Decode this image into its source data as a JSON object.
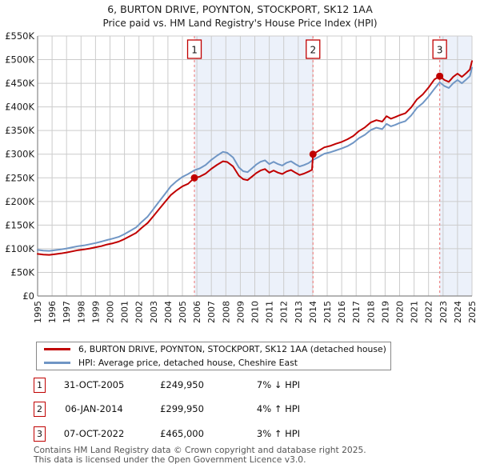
{
  "title": {
    "line1": "6, BURTON DRIVE, POYNTON, STOCKPORT, SK12 1AA",
    "line2": "Price paid vs. HM Land Registry's House Price Index (HPI)"
  },
  "chart_data": {
    "type": "line",
    "title": "Price paid vs. HM Land Registry's House Price Index (HPI)",
    "xlim": [
      1995,
      2025
    ],
    "ylim": [
      0,
      550
    ],
    "grid": true,
    "legend_position": "bottom",
    "x_ticks": [
      "1995",
      "1996",
      "1997",
      "1998",
      "1999",
      "2000",
      "2001",
      "2002",
      "2003",
      "2004",
      "2005",
      "2006",
      "2007",
      "2008",
      "2009",
      "2010",
      "2011",
      "2012",
      "2013",
      "2014",
      "2015",
      "2016",
      "2017",
      "2018",
      "2019",
      "2020",
      "2021",
      "2022",
      "2023",
      "2024",
      "2025"
    ],
    "y_ticks": [
      {
        "value": 0,
        "label": "£0"
      },
      {
        "value": 50,
        "label": "£50K"
      },
      {
        "value": 100,
        "label": "£100K"
      },
      {
        "value": 150,
        "label": "£150K"
      },
      {
        "value": 200,
        "label": "£200K"
      },
      {
        "value": 250,
        "label": "£250K"
      },
      {
        "value": 300,
        "label": "£300K"
      },
      {
        "value": 350,
        "label": "£350K"
      },
      {
        "value": 400,
        "label": "£400K"
      },
      {
        "value": 450,
        "label": "£450K"
      },
      {
        "value": 500,
        "label": "£500K"
      },
      {
        "value": 550,
        "label": "£550K"
      }
    ],
    "y_unit": "GBP thousands",
    "colors": {
      "property_line": "#c00000",
      "hpi_line": "#7096c5",
      "sale_dashed_line": "#ee8888",
      "shaded_region": "#ecf1fa",
      "gridline": "#cccccc",
      "axis": "#888888",
      "marker_box_border": "#c00000"
    },
    "shaded_regions": [
      [
        2005.83,
        2014.02
      ],
      [
        2022.77,
        2025
      ]
    ],
    "series": [
      {
        "name": "6, BURTON DRIVE, POYNTON, STOCKPORT, SK12 1AA (detached house)",
        "color": "#c00000",
        "points": [
          [
            1995.0,
            89
          ],
          [
            1995.4,
            87.5
          ],
          [
            1995.8,
            87
          ],
          [
            1996.2,
            88.5
          ],
          [
            1996.6,
            90
          ],
          [
            1997.0,
            92
          ],
          [
            1997.4,
            94.5
          ],
          [
            1997.8,
            97
          ],
          [
            1998.2,
            98.5
          ],
          [
            1998.6,
            100.5
          ],
          [
            1999.0,
            103
          ],
          [
            1999.4,
            105.5
          ],
          [
            1999.8,
            109
          ],
          [
            2000.2,
            111.5
          ],
          [
            2000.6,
            115
          ],
          [
            2001.0,
            120.5
          ],
          [
            2001.4,
            127
          ],
          [
            2001.8,
            133.5
          ],
          [
            2002.2,
            144.5
          ],
          [
            2002.6,
            154.5
          ],
          [
            2003.0,
            169
          ],
          [
            2003.4,
            184
          ],
          [
            2003.8,
            199
          ],
          [
            2004.2,
            213.5
          ],
          [
            2004.6,
            223.5
          ],
          [
            2005.0,
            232
          ],
          [
            2005.4,
            237.5
          ],
          [
            2005.83,
            249.95
          ],
          [
            2006.2,
            252.5
          ],
          [
            2006.6,
            259
          ],
          [
            2007.0,
            269
          ],
          [
            2007.4,
            277.5
          ],
          [
            2007.8,
            285
          ],
          [
            2008.1,
            283.5
          ],
          [
            2008.5,
            274
          ],
          [
            2008.9,
            254.5
          ],
          [
            2009.2,
            247
          ],
          [
            2009.5,
            245
          ],
          [
            2009.8,
            252.5
          ],
          [
            2010.1,
            260
          ],
          [
            2010.4,
            265.5
          ],
          [
            2010.7,
            268.5
          ],
          [
            2011.0,
            261
          ],
          [
            2011.3,
            265.5
          ],
          [
            2011.6,
            261
          ],
          [
            2011.9,
            258
          ],
          [
            2012.2,
            263.5
          ],
          [
            2012.5,
            266.5
          ],
          [
            2012.8,
            261
          ],
          [
            2013.1,
            256
          ],
          [
            2013.4,
            259
          ],
          [
            2013.7,
            263
          ],
          [
            2013.95,
            267
          ],
          [
            2014.02,
            299.95
          ],
          [
            2014.4,
            307
          ],
          [
            2014.8,
            314.5
          ],
          [
            2015.2,
            317.5
          ],
          [
            2015.6,
            322
          ],
          [
            2016.0,
            326
          ],
          [
            2016.4,
            331.5
          ],
          [
            2016.8,
            338.5
          ],
          [
            2017.2,
            349
          ],
          [
            2017.6,
            356.5
          ],
          [
            2018.0,
            367
          ],
          [
            2018.4,
            372
          ],
          [
            2018.8,
            369
          ],
          [
            2019.1,
            380.5
          ],
          [
            2019.4,
            375
          ],
          [
            2019.7,
            378.5
          ],
          [
            2020.0,
            382.5
          ],
          [
            2020.4,
            386.5
          ],
          [
            2020.8,
            399
          ],
          [
            2021.2,
            416
          ],
          [
            2021.6,
            426.5
          ],
          [
            2022.0,
            441
          ],
          [
            2022.4,
            458
          ],
          [
            2022.77,
            465
          ],
          [
            2023.1,
            457
          ],
          [
            2023.4,
            453
          ],
          [
            2023.7,
            463.5
          ],
          [
            2024.0,
            470.5
          ],
          [
            2024.3,
            463.5
          ],
          [
            2024.6,
            471.5
          ],
          [
            2024.85,
            479
          ],
          [
            2025.0,
            497
          ]
        ]
      },
      {
        "name": "HPI: Average price, detached house, Cheshire East",
        "color": "#7096c5",
        "points": [
          [
            1995.0,
            97.5
          ],
          [
            1995.4,
            96
          ],
          [
            1995.8,
            95.5
          ],
          [
            1996.2,
            97
          ],
          [
            1996.6,
            98.5
          ],
          [
            1997.0,
            100.5
          ],
          [
            1997.4,
            103
          ],
          [
            1997.8,
            105.5
          ],
          [
            1998.2,
            107
          ],
          [
            1998.6,
            109.5
          ],
          [
            1999.0,
            112
          ],
          [
            1999.4,
            115
          ],
          [
            1999.8,
            118.5
          ],
          [
            2000.2,
            121.5
          ],
          [
            2000.6,
            125
          ],
          [
            2001.0,
            131
          ],
          [
            2001.4,
            138
          ],
          [
            2001.8,
            145
          ],
          [
            2002.2,
            157
          ],
          [
            2002.6,
            168
          ],
          [
            2003.0,
            184
          ],
          [
            2003.4,
            200
          ],
          [
            2003.8,
            216
          ],
          [
            2004.2,
            232
          ],
          [
            2004.6,
            243
          ],
          [
            2005.0,
            252
          ],
          [
            2005.4,
            258
          ],
          [
            2005.83,
            266
          ],
          [
            2006.2,
            270
          ],
          [
            2006.6,
            277
          ],
          [
            2007.0,
            288
          ],
          [
            2007.4,
            297
          ],
          [
            2007.8,
            305
          ],
          [
            2008.1,
            303
          ],
          [
            2008.5,
            293
          ],
          [
            2008.9,
            272
          ],
          [
            2009.2,
            264
          ],
          [
            2009.5,
            262
          ],
          [
            2009.8,
            270
          ],
          [
            2010.1,
            278
          ],
          [
            2010.4,
            284
          ],
          [
            2010.7,
            287
          ],
          [
            2011.0,
            279
          ],
          [
            2011.3,
            284
          ],
          [
            2011.6,
            279
          ],
          [
            2011.9,
            276
          ],
          [
            2012.2,
            282
          ],
          [
            2012.5,
            285
          ],
          [
            2012.8,
            279
          ],
          [
            2013.1,
            274
          ],
          [
            2013.4,
            277
          ],
          [
            2013.7,
            281
          ],
          [
            2014.02,
            288
          ],
          [
            2014.4,
            294
          ],
          [
            2014.8,
            301
          ],
          [
            2015.2,
            304
          ],
          [
            2015.6,
            308
          ],
          [
            2016.0,
            312
          ],
          [
            2016.4,
            317
          ],
          [
            2016.8,
            324
          ],
          [
            2017.2,
            334
          ],
          [
            2017.6,
            341
          ],
          [
            2018.0,
            351
          ],
          [
            2018.4,
            356
          ],
          [
            2018.8,
            353
          ],
          [
            2019.1,
            364
          ],
          [
            2019.4,
            359
          ],
          [
            2019.7,
            362
          ],
          [
            2020.0,
            366
          ],
          [
            2020.4,
            370
          ],
          [
            2020.8,
            382
          ],
          [
            2021.2,
            398
          ],
          [
            2021.6,
            408
          ],
          [
            2022.0,
            422
          ],
          [
            2022.4,
            438
          ],
          [
            2022.77,
            452
          ],
          [
            2023.1,
            444
          ],
          [
            2023.4,
            440
          ],
          [
            2023.7,
            450
          ],
          [
            2024.0,
            457
          ],
          [
            2024.3,
            450
          ],
          [
            2024.6,
            458
          ],
          [
            2024.85,
            465
          ],
          [
            2025.0,
            483
          ]
        ]
      }
    ],
    "sales": [
      {
        "num": "1",
        "x": 2005.83,
        "y": 249.95,
        "date": "31-OCT-2005",
        "price": "£249,950",
        "hpi_delta": "7% ↓ HPI"
      },
      {
        "num": "2",
        "x": 2014.02,
        "y": 299.95,
        "date": "06-JAN-2014",
        "price": "£299,950",
        "hpi_delta": "4% ↑ HPI"
      },
      {
        "num": "3",
        "x": 2022.77,
        "y": 465,
        "date": "07-OCT-2022",
        "price": "£465,000",
        "hpi_delta": "3% ↑ HPI"
      }
    ]
  },
  "legend": {
    "items": [
      {
        "label": "6, BURTON DRIVE, POYNTON, STOCKPORT, SK12 1AA (detached house)",
        "color": "#c00000"
      },
      {
        "label": "HPI: Average price, detached house, Cheshire East",
        "color": "#7096c5"
      }
    ]
  },
  "transactions": [
    {
      "num": "1",
      "date": "31-OCT-2005",
      "price": "£249,950",
      "hpi_delta": "7% ↓ HPI"
    },
    {
      "num": "2",
      "date": "06-JAN-2014",
      "price": "£299,950",
      "hpi_delta": "4% ↑ HPI"
    },
    {
      "num": "3",
      "date": "07-OCT-2022",
      "price": "£465,000",
      "hpi_delta": "3% ↑ HPI"
    }
  ],
  "footer": {
    "line1": "Contains HM Land Registry data © Crown copyright and database right 2025.",
    "line2": "This data is licensed under the Open Government Licence v3.0."
  }
}
